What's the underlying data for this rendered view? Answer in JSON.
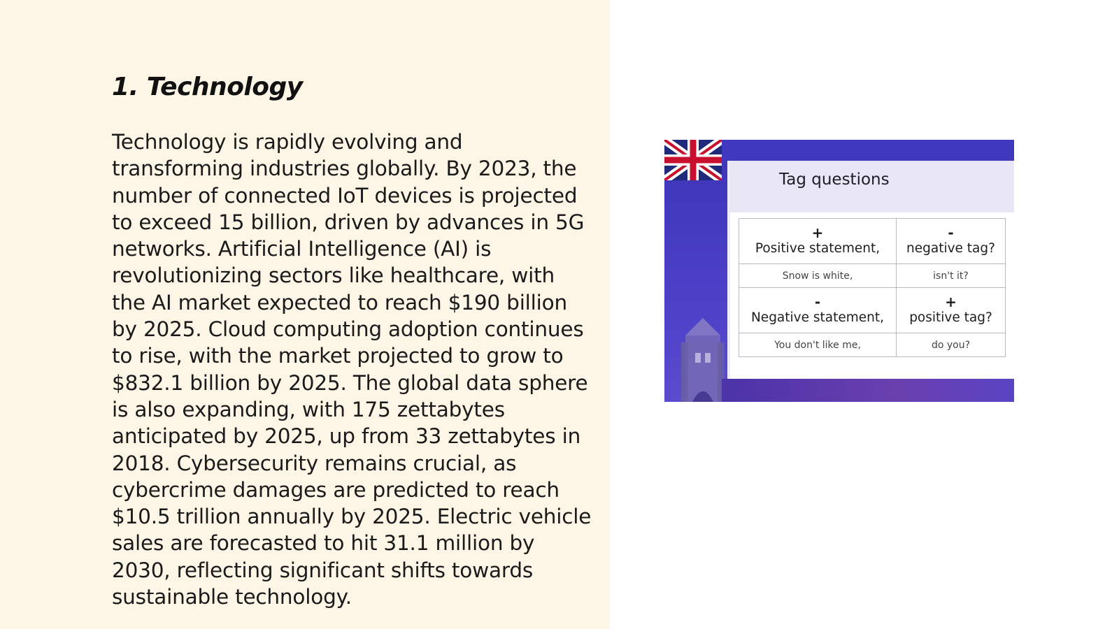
{
  "slide": {
    "title": "1. Technology",
    "body": "Technology is rapidly evolving and transforming industries globally. By 2023, the number of connected IoT devices is projected to exceed 15 billion, driven by advances in 5G networks. Artificial Intelligence (AI) is revolutionizing sectors like healthcare, with the AI market expected to reach $190 billion by 2025. Cloud computing adoption continues to rise, with the market projected to grow to $832.1 billion by 2025. The global data sphere is also expanding, with 175 zettabytes anticipated by 2025, up from 33 zettabytes in 2018. Cybersecurity remains crucial, as cybercrime damages are predicted to reach $10.5 trillion annually by 2025. Electric vehicle sales are forecasted to hit 31.1 million by 2030, reflecting significant shifts towards sustainable technology."
  },
  "image": {
    "title": "Tag questions",
    "table": [
      {
        "left_sign": "+",
        "left_label": "Positive statement,",
        "right_sign": "-",
        "right_label": "negative tag?",
        "left_example": "Snow is white,",
        "right_example": "isn't it?"
      },
      {
        "left_sign": "-",
        "left_label": "Negative statement,",
        "right_sign": "+",
        "right_label": "positive tag?",
        "left_example": "You don't like me,",
        "right_example": "do you?"
      }
    ],
    "icons": [
      "union-jack-flag-icon",
      "tower-bridge-icon"
    ]
  },
  "colors": {
    "left_panel_bg": "#fdf5e6",
    "image_frame_blue": "#4a3fc6"
  }
}
